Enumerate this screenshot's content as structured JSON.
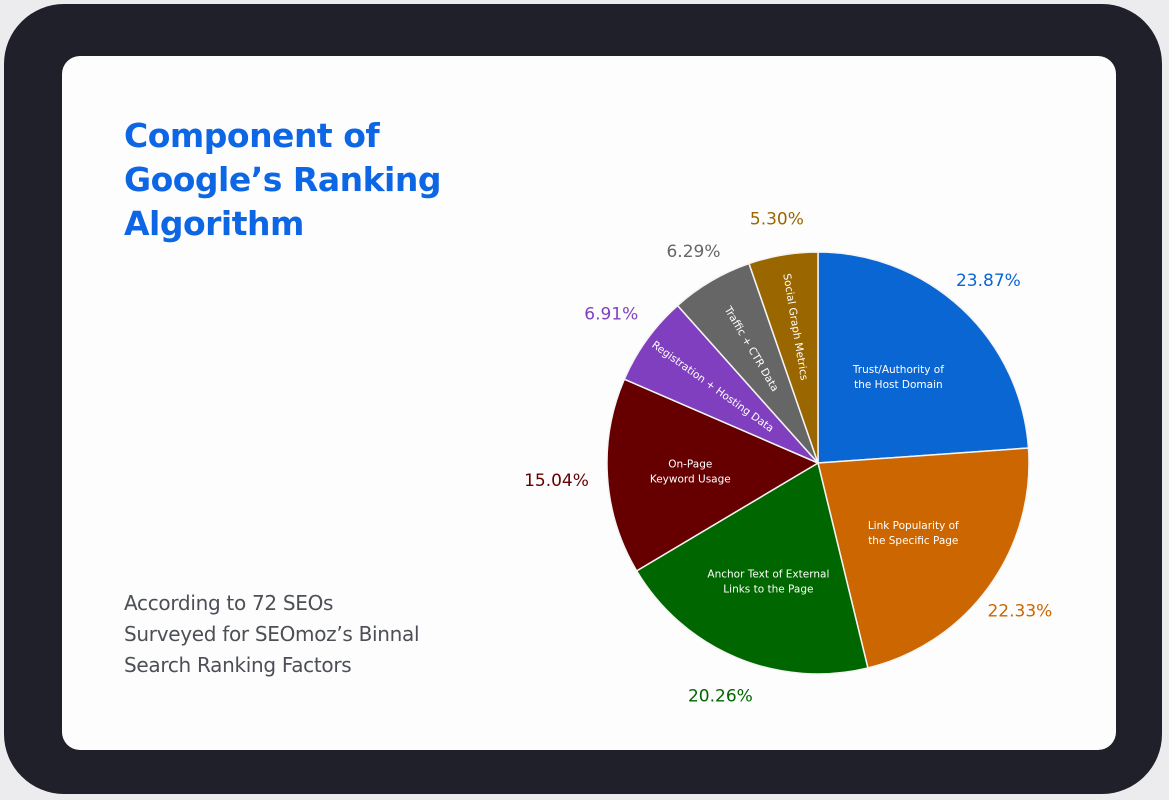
{
  "title_lines": [
    "Component of",
    "Google’s Ranking",
    "Algorithm"
  ],
  "caption_lines": [
    "According to 72 SEOs",
    "Surveyed for SEOmoz’s Binnal",
    "Search Ranking Factors"
  ],
  "chart_data": {
    "type": "pie",
    "start_angle_deg": 90,
    "direction": "clockwise",
    "slices": [
      {
        "label_lines": [
          "Trust/Authority of",
          "the Host Domain"
        ],
        "value": 23.87,
        "value_label": "23.87%",
        "color": "#0a66d3",
        "label_rotation": 0,
        "label_inside": true
      },
      {
        "label_lines": [
          "Link Popularity of",
          "the Specific Page"
        ],
        "value": 22.33,
        "value_label": "22.33%",
        "color": "#cc6600",
        "label_rotation": 0,
        "label_inside": true
      },
      {
        "label_lines": [
          "Anchor Text of External",
          "Links to the Page"
        ],
        "value": 20.26,
        "value_label": "20.26%",
        "color": "#006600",
        "label_rotation": 0,
        "label_inside": true
      },
      {
        "label_lines": [
          "On-Page",
          "Keyword Usage"
        ],
        "value": 15.04,
        "value_label": "15.04%",
        "color": "#660000",
        "label_rotation": 0,
        "label_inside": true
      },
      {
        "label_lines": [
          "Registration + Hosting Data"
        ],
        "value": 6.91,
        "value_label": "6.91%",
        "color": "#7f3fbf",
        "label_rotation": "radial",
        "label_inside": true
      },
      {
        "label_lines": [
          "Traffic + CTR Data"
        ],
        "value": 6.29,
        "value_label": "6.29%",
        "color": "#666666",
        "label_rotation": "radial",
        "label_inside": true
      },
      {
        "label_lines": [
          "Social Graph Metrics"
        ],
        "value": 5.3,
        "value_label": "5.30%",
        "color": "#996600",
        "label_rotation": "radial",
        "label_inside": true
      }
    ]
  }
}
